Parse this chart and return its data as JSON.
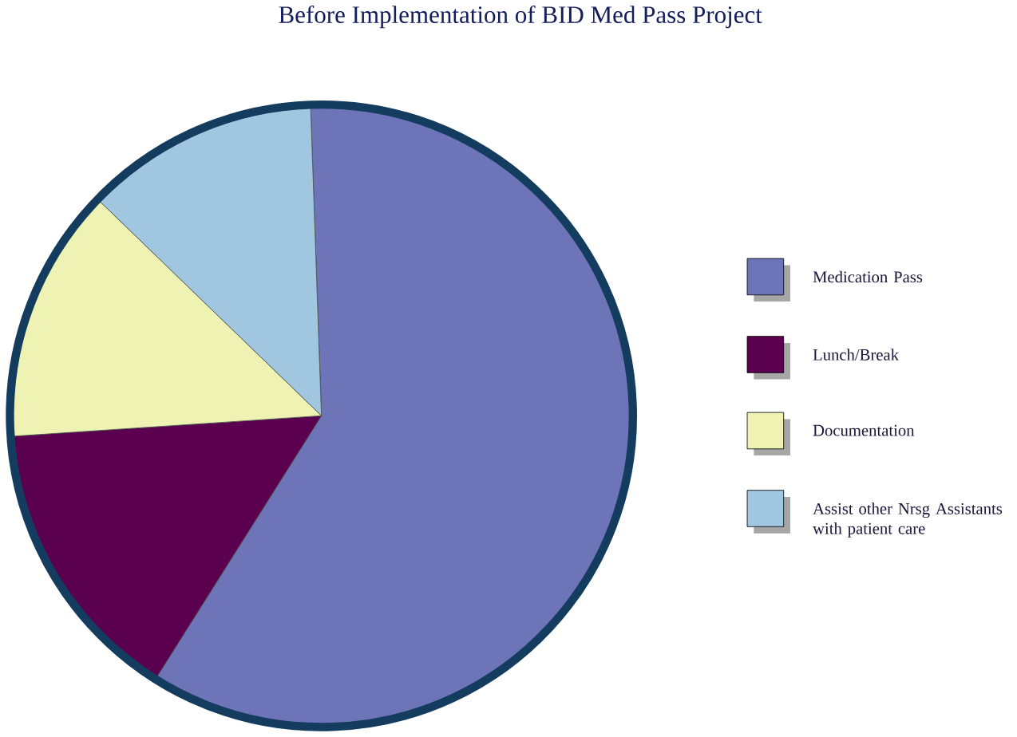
{
  "chart_data": {
    "type": "pie",
    "title": "Before Implementation of BID Med Pass Project",
    "categories": [
      "Medication Pass",
      "Lunch/Break",
      "Documentation",
      "Assist other Nrsg Assistants with patient care"
    ],
    "values": [
      59.5,
      15,
      13.3,
      12.2
    ],
    "colors": [
      "#6e74b8",
      "#5a004e",
      "#eef3b4",
      "#a0c6e0"
    ],
    "legend": "right"
  }
}
